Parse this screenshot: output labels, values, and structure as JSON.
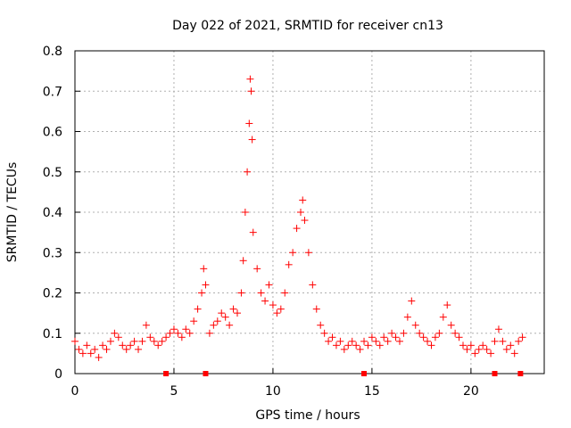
{
  "chart_data": {
    "type": "scatter",
    "title": "Day 022 of 2021, SRMTID for receiver cn13",
    "xlabel": "GPS time / hours",
    "ylabel": "SRMTID / TECUs",
    "xlim": [
      0,
      23.7
    ],
    "ylim": [
      0,
      0.8
    ],
    "grid": true,
    "x_ticks": [
      0,
      5,
      10,
      15,
      20
    ],
    "y_ticks": [
      0,
      0.1,
      0.2,
      0.3,
      0.4,
      0.5,
      0.6,
      0.7,
      0.8
    ],
    "x_tick_labels": [
      "0",
      "5",
      "10",
      "15",
      "20"
    ],
    "y_tick_labels": [
      "0",
      "0.1",
      "0.2",
      "0.3",
      "0.4",
      "0.5",
      "0.6",
      "0.7",
      "0.8"
    ],
    "marker": "+",
    "color": "#ff0000",
    "series": [
      {
        "name": "SRMTID",
        "points": [
          [
            0.0,
            0.08
          ],
          [
            0.2,
            0.06
          ],
          [
            0.4,
            0.05
          ],
          [
            0.6,
            0.07
          ],
          [
            0.8,
            0.05
          ],
          [
            1.0,
            0.06
          ],
          [
            1.2,
            0.04
          ],
          [
            1.4,
            0.07
          ],
          [
            1.6,
            0.06
          ],
          [
            1.8,
            0.08
          ],
          [
            2.0,
            0.1
          ],
          [
            2.2,
            0.09
          ],
          [
            2.4,
            0.07
          ],
          [
            2.6,
            0.06
          ],
          [
            2.8,
            0.07
          ],
          [
            3.0,
            0.08
          ],
          [
            3.2,
            0.06
          ],
          [
            3.4,
            0.08
          ],
          [
            3.6,
            0.12
          ],
          [
            3.8,
            0.09
          ],
          [
            4.0,
            0.08
          ],
          [
            4.2,
            0.07
          ],
          [
            4.4,
            0.08
          ],
          [
            4.6,
            0.09
          ],
          [
            4.8,
            0.1
          ],
          [
            5.0,
            0.11
          ],
          [
            5.2,
            0.1
          ],
          [
            5.4,
            0.09
          ],
          [
            5.6,
            0.11
          ],
          [
            5.8,
            0.1
          ],
          [
            6.0,
            0.13
          ],
          [
            6.2,
            0.16
          ],
          [
            6.4,
            0.2
          ],
          [
            6.5,
            0.26
          ],
          [
            6.6,
            0.22
          ],
          [
            6.8,
            0.1
          ],
          [
            7.0,
            0.12
          ],
          [
            7.2,
            0.13
          ],
          [
            7.4,
            0.15
          ],
          [
            7.6,
            0.14
          ],
          [
            7.8,
            0.12
          ],
          [
            8.0,
            0.16
          ],
          [
            8.2,
            0.15
          ],
          [
            8.4,
            0.2
          ],
          [
            8.5,
            0.28
          ],
          [
            8.6,
            0.4
          ],
          [
            8.7,
            0.5
          ],
          [
            8.8,
            0.62
          ],
          [
            8.85,
            0.73
          ],
          [
            8.9,
            0.7
          ],
          [
            8.95,
            0.58
          ],
          [
            9.0,
            0.35
          ],
          [
            9.2,
            0.26
          ],
          [
            9.4,
            0.2
          ],
          [
            9.6,
            0.18
          ],
          [
            9.8,
            0.22
          ],
          [
            10.0,
            0.17
          ],
          [
            10.2,
            0.15
          ],
          [
            10.4,
            0.16
          ],
          [
            10.6,
            0.2
          ],
          [
            10.8,
            0.27
          ],
          [
            11.0,
            0.3
          ],
          [
            11.2,
            0.36
          ],
          [
            11.4,
            0.4
          ],
          [
            11.5,
            0.43
          ],
          [
            11.6,
            0.38
          ],
          [
            11.8,
            0.3
          ],
          [
            12.0,
            0.22
          ],
          [
            12.2,
            0.16
          ],
          [
            12.4,
            0.12
          ],
          [
            12.6,
            0.1
          ],
          [
            12.8,
            0.08
          ],
          [
            13.0,
            0.09
          ],
          [
            13.2,
            0.07
          ],
          [
            13.4,
            0.08
          ],
          [
            13.6,
            0.06
          ],
          [
            13.8,
            0.07
          ],
          [
            14.0,
            0.08
          ],
          [
            14.2,
            0.07
          ],
          [
            14.4,
            0.06
          ],
          [
            14.6,
            0.08
          ],
          [
            14.8,
            0.07
          ],
          [
            15.0,
            0.09
          ],
          [
            15.2,
            0.08
          ],
          [
            15.4,
            0.07
          ],
          [
            15.6,
            0.09
          ],
          [
            15.8,
            0.08
          ],
          [
            16.0,
            0.1
          ],
          [
            16.2,
            0.09
          ],
          [
            16.4,
            0.08
          ],
          [
            16.6,
            0.1
          ],
          [
            16.8,
            0.14
          ],
          [
            17.0,
            0.18
          ],
          [
            17.2,
            0.12
          ],
          [
            17.4,
            0.1
          ],
          [
            17.6,
            0.09
          ],
          [
            17.8,
            0.08
          ],
          [
            18.0,
            0.07
          ],
          [
            18.2,
            0.09
          ],
          [
            18.4,
            0.1
          ],
          [
            18.6,
            0.14
          ],
          [
            18.8,
            0.17
          ],
          [
            19.0,
            0.12
          ],
          [
            19.2,
            0.1
          ],
          [
            19.4,
            0.09
          ],
          [
            19.6,
            0.07
          ],
          [
            19.8,
            0.06
          ],
          [
            20.0,
            0.07
          ],
          [
            20.2,
            0.05
          ],
          [
            20.4,
            0.06
          ],
          [
            20.6,
            0.07
          ],
          [
            20.8,
            0.06
          ],
          [
            21.0,
            0.05
          ],
          [
            21.2,
            0.08
          ],
          [
            21.4,
            0.11
          ],
          [
            21.6,
            0.08
          ],
          [
            21.8,
            0.06
          ],
          [
            22.0,
            0.07
          ],
          [
            22.2,
            0.05
          ],
          [
            22.4,
            0.08
          ],
          [
            22.6,
            0.09
          ]
        ]
      }
    ],
    "x_markers": [
      4.6,
      6.6,
      14.6,
      21.2,
      22.5
    ]
  }
}
